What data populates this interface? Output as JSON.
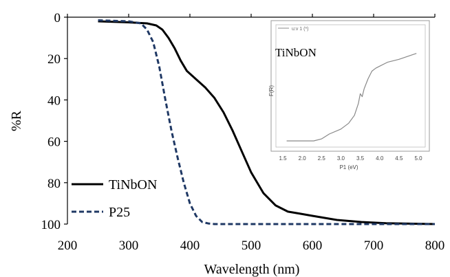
{
  "chart_data": [
    {
      "type": "line",
      "xlabel": "Wavelength  (nm)",
      "ylabel": "%R",
      "xlim": [
        200,
        800
      ],
      "ylim": [
        0,
        100
      ],
      "y_axis_inverted": true,
      "x_ticks": [
        "200",
        "300",
        "400",
        "500",
        "600",
        "700",
        "800"
      ],
      "y_ticks": [
        "0",
        "20",
        "40",
        "60",
        "80",
        "100"
      ],
      "grid": false,
      "legend_position": "bottom-left",
      "series": [
        {
          "name": "TiNbON",
          "style": "solid",
          "color": "#000000",
          "x": [
            250,
            300,
            330,
            345,
            355,
            365,
            375,
            385,
            395,
            410,
            425,
            440,
            455,
            470,
            485,
            500,
            520,
            540,
            560,
            580,
            600,
            620,
            640,
            660,
            680,
            700,
            720,
            760,
            800
          ],
          "y": [
            2,
            2.5,
            3,
            4,
            6,
            10,
            15,
            21,
            26,
            30,
            34,
            39,
            46,
            55,
            65,
            75,
            85,
            91,
            94,
            95,
            96,
            97,
            98,
            98.5,
            99,
            99.3,
            99.6,
            99.8,
            100
          ]
        },
        {
          "name": "P25",
          "style": "dashed",
          "color": "#1f3864",
          "x": [
            250,
            300,
            320,
            330,
            340,
            350,
            360,
            370,
            380,
            390,
            400,
            410,
            420,
            430,
            440,
            460,
            500,
            600,
            700,
            800
          ],
          "y": [
            1.5,
            2,
            3,
            6,
            12,
            24,
            40,
            55,
            68,
            80,
            90,
            96,
            99,
            99.7,
            100,
            100,
            100,
            100,
            100,
            100
          ]
        }
      ]
    },
    {
      "type": "line",
      "xlabel": "P1 (eV)",
      "ylabel": "F(R)",
      "title": "TiNbON",
      "xlim": [
        1.5,
        5.0
      ],
      "x_ticks": [
        "1.5",
        "2.0",
        "2.5",
        "3.0",
        "3.5",
        "4.0",
        "4.5",
        "5.0"
      ],
      "legend_position": "top-left",
      "series": [
        {
          "name": "u:v 1 (*)",
          "style": "solid",
          "color": "#888888",
          "x": [
            1.6,
            2.0,
            2.3,
            2.5,
            2.7,
            3.0,
            3.2,
            3.35,
            3.45,
            3.5,
            3.55,
            3.6,
            3.7,
            3.8,
            3.9,
            4.0,
            4.2,
            4.5,
            4.8,
            4.95
          ],
          "y": [
            0.0,
            0.0,
            0.0,
            0.02,
            0.07,
            0.12,
            0.18,
            0.26,
            0.38,
            0.48,
            0.45,
            0.53,
            0.63,
            0.71,
            0.74,
            0.76,
            0.8,
            0.83,
            0.87,
            0.89
          ]
        }
      ]
    }
  ]
}
